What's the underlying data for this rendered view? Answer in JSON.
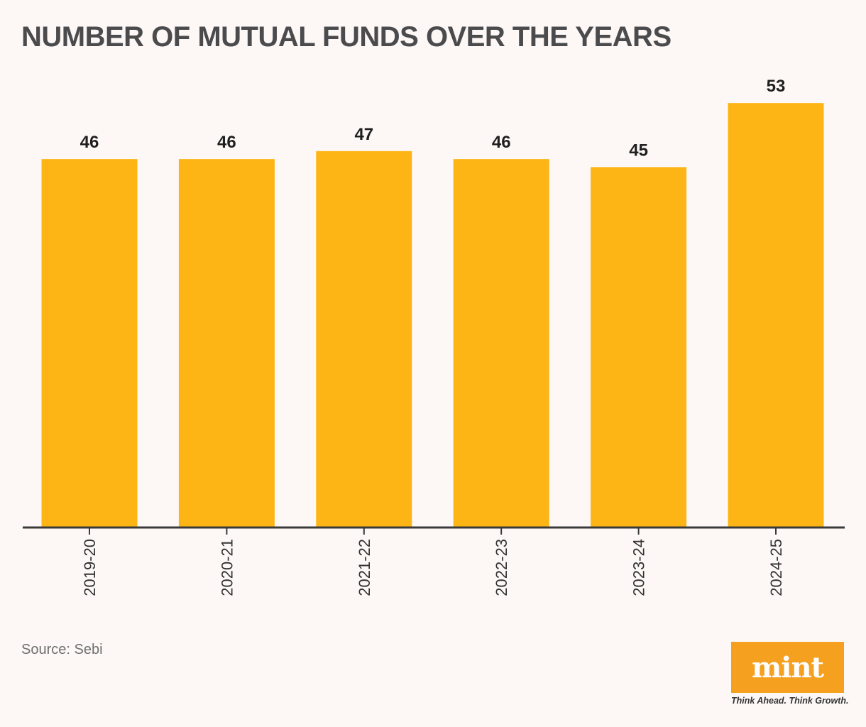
{
  "chart_data": {
    "type": "bar",
    "title": "NUMBER OF MUTUAL FUNDS OVER THE YEARS",
    "categories": [
      "2019-20",
      "2020-21",
      "2021-22",
      "2022-23",
      "2023-24",
      "2024-25"
    ],
    "values": [
      46,
      46,
      47,
      46,
      45,
      53
    ],
    "xlabel": "",
    "ylabel": "",
    "ylim": [
      0,
      60
    ],
    "bar_color": "#fdb515",
    "axis_color": "#3a3a3a"
  },
  "source": "Source: Sebi",
  "branding": {
    "logo": "mint",
    "tagline": "Think Ahead. Think Growth."
  }
}
